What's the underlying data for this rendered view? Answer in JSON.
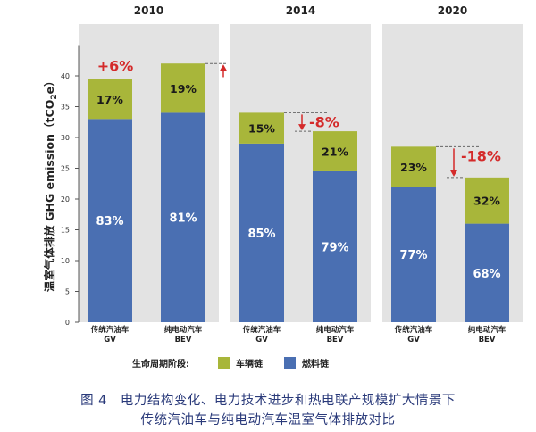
{
  "chart_data": {
    "type": "bar",
    "stacked": true,
    "ylabel": "温室气体排放 GHG emission（tCO",
    "ylabel_sub": "2",
    "ylabel_tail": "e）",
    "ylim": [
      0,
      45
    ],
    "yticks": [
      0,
      5,
      10,
      15,
      20,
      25,
      30,
      35,
      40
    ],
    "groups": [
      {
        "year": "2010",
        "change": "+6%",
        "direction": "up",
        "bars": [
          {
            "label": [
              "传统汽油车",
              "GV"
            ],
            "total": 39.5,
            "fuel": 33,
            "vehicle": 6.5,
            "fuel_pct": "83%",
            "vehicle_pct": "17%"
          },
          {
            "label": [
              "纯电动汽车",
              "BEV"
            ],
            "total": 42,
            "fuel": 34,
            "vehicle": 8,
            "fuel_pct": "81%",
            "vehicle_pct": "19%"
          }
        ]
      },
      {
        "year": "2014",
        "change": "-8%",
        "direction": "down",
        "bars": [
          {
            "label": [
              "传统汽油车",
              "GV"
            ],
            "total": 34,
            "fuel": 29,
            "vehicle": 5,
            "fuel_pct": "85%",
            "vehicle_pct": "15%"
          },
          {
            "label": [
              "纯电动汽车",
              "BEV"
            ],
            "total": 31,
            "fuel": 24.5,
            "vehicle": 6.5,
            "fuel_pct": "79%",
            "vehicle_pct": "21%"
          }
        ]
      },
      {
        "year": "2020",
        "change": "-18%",
        "direction": "down",
        "bars": [
          {
            "label": [
              "传统汽油车",
              "GV"
            ],
            "total": 28.5,
            "fuel": 22,
            "vehicle": 6.5,
            "fuel_pct": "77%",
            "vehicle_pct": "23%"
          },
          {
            "label": [
              "纯电动汽车",
              "BEV"
            ],
            "total": 23.5,
            "fuel": 16,
            "vehicle": 7.5,
            "fuel_pct": "68%",
            "vehicle_pct": "32%"
          }
        ]
      }
    ],
    "legend": {
      "title": "生命周期阶段:",
      "items": [
        {
          "name": "车辆链",
          "key": "vehicle"
        },
        {
          "name": "燃料链",
          "key": "fuel"
        }
      ]
    },
    "colors": {
      "fuel": "#4a6fb2",
      "vehicle": "#a8b63a",
      "panel": "#e3e3e3",
      "change": "#d42a2a",
      "year": "#222222"
    }
  },
  "caption": {
    "line1": "图 4　电力结构变化、电力技术进步和热电联产规模扩大情景下",
    "line2": "传统汽油车与纯电动汽车温室气体排放对比"
  }
}
